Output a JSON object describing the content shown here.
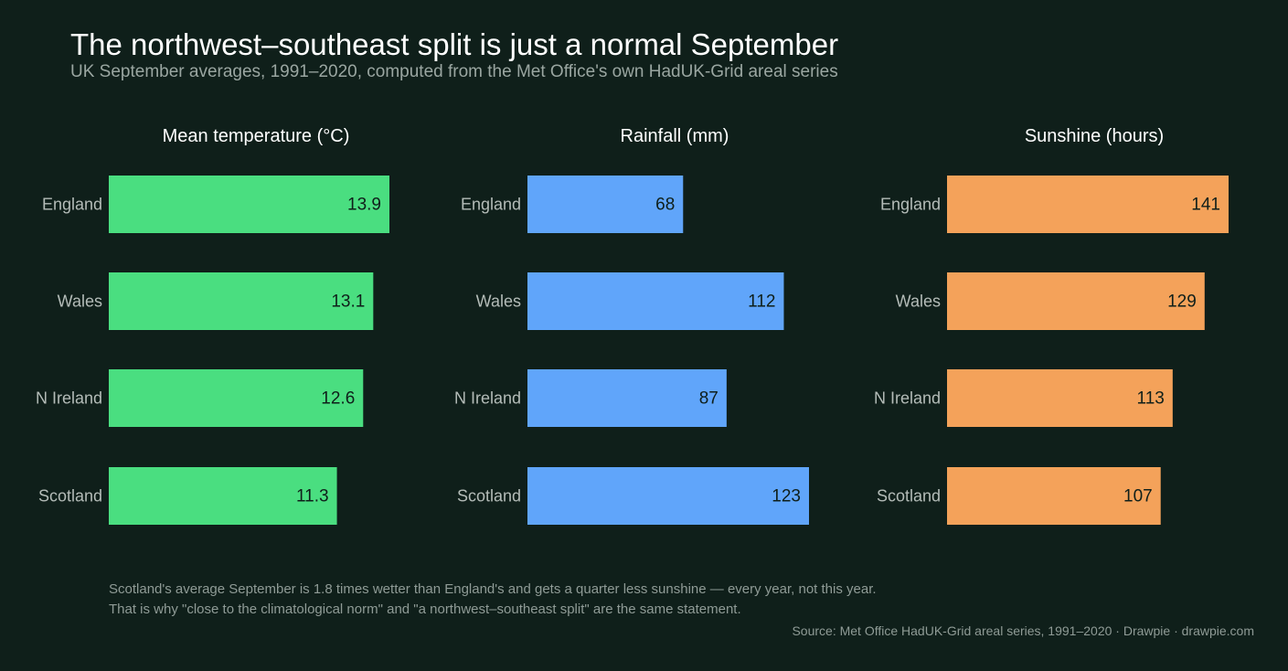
{
  "title": "The northwest–southeast split is just a normal September",
  "subtitle": "UK September averages, 1991–2020, computed from the Met Office's own HadUK-Grid areal series",
  "notes": {
    "line1": "Scotland's average September is 1.8 times wetter than England's and gets a quarter less sunshine — every year, not this year.",
    "line2": "That is why \"close to the climatological norm\" and \"a northwest–southeast split\" are the same statement."
  },
  "source": "Source: Met Office HadUK-Grid areal series, 1991–2020  ·  Drawpie · drawpie.com",
  "chart_data": [
    {
      "type": "bar",
      "orientation": "horizontal",
      "title": "Mean temperature  (°C)",
      "categories": [
        "England",
        "Wales",
        "N Ireland",
        "Scotland"
      ],
      "values": [
        13.9,
        13.1,
        12.6,
        11.3
      ],
      "labels": [
        "13.9",
        "13.1",
        "12.6",
        "11.3"
      ],
      "xlim": [
        0,
        13.9
      ],
      "color": "#4ade80",
      "grid": false
    },
    {
      "type": "bar",
      "orientation": "horizontal",
      "title": "Rainfall  (mm)",
      "categories": [
        "England",
        "Wales",
        "N Ireland",
        "Scotland"
      ],
      "values": [
        68,
        112,
        87,
        123
      ],
      "labels": [
        "68",
        "112",
        "87",
        "123"
      ],
      "xlim": [
        0,
        123
      ],
      "color": "#60a5fa",
      "grid": false
    },
    {
      "type": "bar",
      "orientation": "horizontal",
      "title": "Sunshine  (hours)",
      "categories": [
        "England",
        "Wales",
        "N Ireland",
        "Scotland"
      ],
      "values": [
        141,
        129,
        113,
        107
      ],
      "labels": [
        "141",
        "129",
        "113",
        "107"
      ],
      "xlim": [
        0,
        141
      ],
      "color": "#f4a25a",
      "grid": false
    }
  ]
}
